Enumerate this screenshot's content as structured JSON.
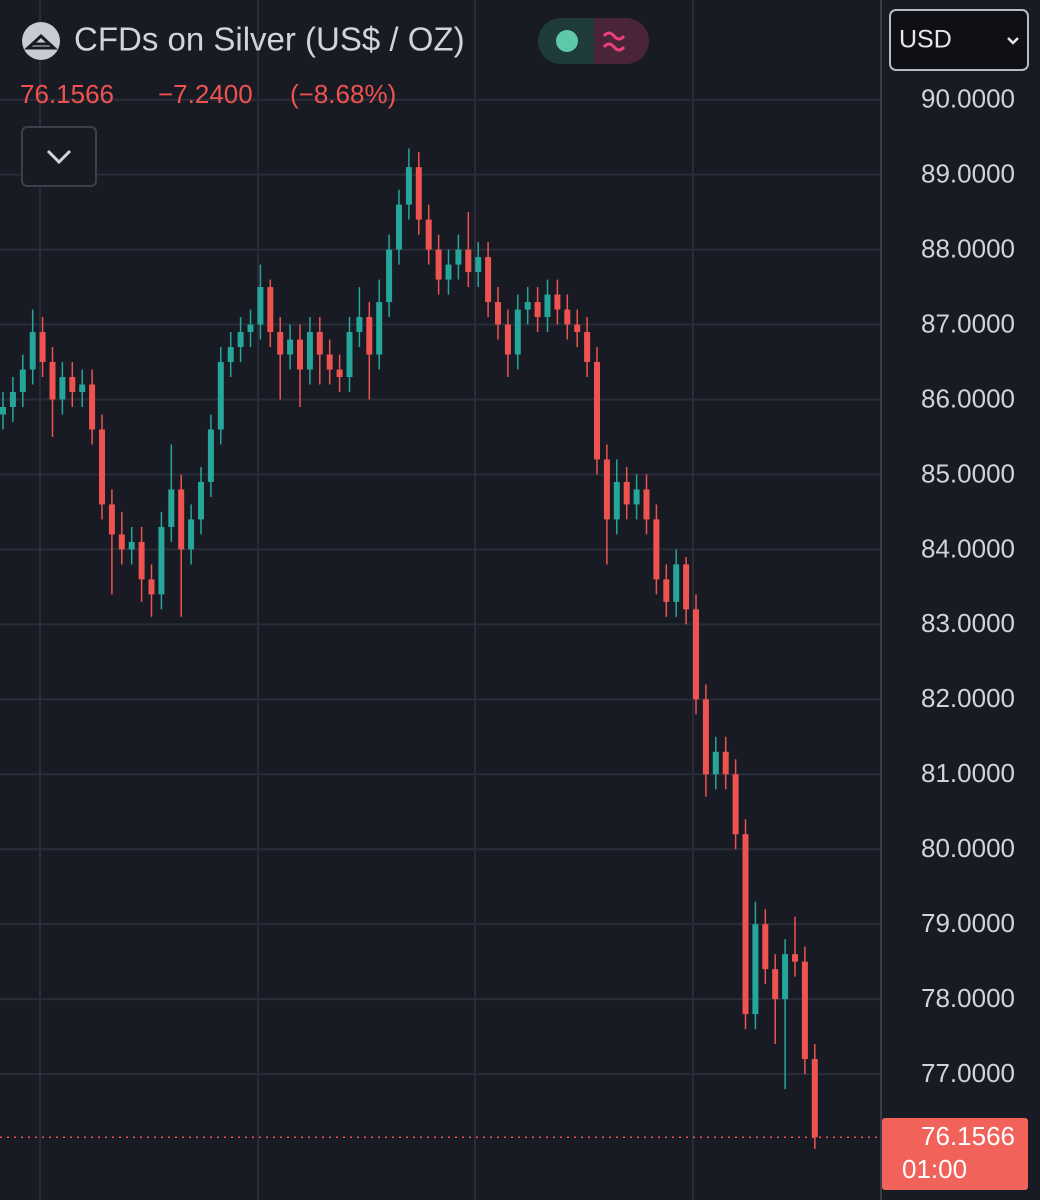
{
  "header": {
    "title": "CFDs on Silver (US$ / OZ)",
    "price": "76.1566",
    "change": "−7.2400",
    "change_pct": "(−8.68%)",
    "currency": "USD",
    "countdown": "01:00"
  },
  "chart_data": {
    "type": "candlestick",
    "up_color": "#26a69a",
    "down_color": "#ef5350",
    "grid": true,
    "ylim": [
      75.32,
      91.33
    ],
    "yticks": [
      {
        "value": 77,
        "label": "77.0000"
      },
      {
        "value": 78,
        "label": "78.0000"
      },
      {
        "value": 79,
        "label": "79.0000"
      },
      {
        "value": 80,
        "label": "80.0000"
      },
      {
        "value": 81,
        "label": "81.0000"
      },
      {
        "value": 82,
        "label": "82.0000"
      },
      {
        "value": 83,
        "label": "83.0000"
      },
      {
        "value": 84,
        "label": "84.0000"
      },
      {
        "value": 85,
        "label": "85.0000"
      },
      {
        "value": 86,
        "label": "86.0000"
      },
      {
        "value": 87,
        "label": "87.0000"
      },
      {
        "value": 88,
        "label": "88.0000"
      },
      {
        "value": 89,
        "label": "89.0000"
      },
      {
        "value": 90,
        "label": "90.0000"
      }
    ],
    "open": [
      85.8,
      85.9,
      86.1,
      86.4,
      86.9,
      86.5,
      86.0,
      86.3,
      86.1,
      86.2,
      85.6,
      84.6,
      84.2,
      84.0,
      84.1,
      83.6,
      83.4,
      84.3,
      84.8,
      84.0,
      84.4,
      84.9,
      85.6,
      86.5,
      86.7,
      86.9,
      87.0,
      87.5,
      86.9,
      86.6,
      86.8,
      86.4,
      86.9,
      86.6,
      86.4,
      86.3,
      86.9,
      87.1,
      86.6,
      87.3,
      88.0,
      88.6,
      89.1,
      88.4,
      88.0,
      87.6,
      87.8,
      88.0,
      87.7,
      87.9,
      87.3,
      87.0,
      86.6,
      87.2,
      87.3,
      87.1,
      87.4,
      87.2,
      87.0,
      86.9,
      86.5,
      85.2,
      84.4,
      84.9,
      84.6,
      84.8,
      84.4,
      83.6,
      83.3,
      83.8,
      83.2,
      82.0,
      81.0,
      81.3,
      81.0,
      80.2,
      77.8,
      79.0,
      78.4,
      78.0,
      78.6,
      78.5,
      77.2
    ],
    "high": [
      86.1,
      86.3,
      86.6,
      87.2,
      87.1,
      86.7,
      86.5,
      86.5,
      86.4,
      86.4,
      85.8,
      84.8,
      84.5,
      84.3,
      84.3,
      83.8,
      84.5,
      85.4,
      85.0,
      84.6,
      85.1,
      85.8,
      86.7,
      86.9,
      87.1,
      87.2,
      87.8,
      87.6,
      87.1,
      87.0,
      87.0,
      87.1,
      87.1,
      86.8,
      86.6,
      87.1,
      87.5,
      87.3,
      87.6,
      88.2,
      88.8,
      89.35,
      89.3,
      88.6,
      88.2,
      88.0,
      88.2,
      88.5,
      88.1,
      88.1,
      87.5,
      87.2,
      87.4,
      87.5,
      87.5,
      87.6,
      87.6,
      87.4,
      87.2,
      87.1,
      86.7,
      85.4,
      85.2,
      85.1,
      85.0,
      85.0,
      84.6,
      83.8,
      84.0,
      83.9,
      83.4,
      82.2,
      81.5,
      81.5,
      81.2,
      80.4,
      79.3,
      79.2,
      78.6,
      78.8,
      79.1,
      78.7,
      77.4
    ],
    "low": [
      85.6,
      85.7,
      85.9,
      86.2,
      86.3,
      85.5,
      85.8,
      85.9,
      85.9,
      85.4,
      84.4,
      83.4,
      83.8,
      83.8,
      83.3,
      83.1,
      83.2,
      84.1,
      83.1,
      83.8,
      84.2,
      84.7,
      85.4,
      86.3,
      86.5,
      86.7,
      86.8,
      86.7,
      86.0,
      86.4,
      85.9,
      86.2,
      86.2,
      86.2,
      86.1,
      86.1,
      86.7,
      86.0,
      86.4,
      87.1,
      87.8,
      88.4,
      88.2,
      87.8,
      87.4,
      87.4,
      87.6,
      87.5,
      87.5,
      87.1,
      86.8,
      86.3,
      86.4,
      87.0,
      86.9,
      86.9,
      87.0,
      86.8,
      86.7,
      86.3,
      85.0,
      83.8,
      84.2,
      84.4,
      84.4,
      84.2,
      83.4,
      83.1,
      83.1,
      83.0,
      81.8,
      80.7,
      80.8,
      80.8,
      80.0,
      77.6,
      77.6,
      78.2,
      77.4,
      76.8,
      78.3,
      77.0,
      76.0
    ],
    "close": [
      85.9,
      86.1,
      86.4,
      86.9,
      86.5,
      86.0,
      86.3,
      86.1,
      86.2,
      85.6,
      84.6,
      84.2,
      84.0,
      84.1,
      83.6,
      83.4,
      84.3,
      84.8,
      84.0,
      84.4,
      84.9,
      85.6,
      86.5,
      86.7,
      86.9,
      87.0,
      87.5,
      86.9,
      86.6,
      86.8,
      86.4,
      86.9,
      86.6,
      86.4,
      86.3,
      86.9,
      87.1,
      86.6,
      87.3,
      88.0,
      88.6,
      89.1,
      88.4,
      88.0,
      87.6,
      87.8,
      88.0,
      87.7,
      87.9,
      87.3,
      87.0,
      86.6,
      87.2,
      87.3,
      87.1,
      87.4,
      87.2,
      87.0,
      86.9,
      86.5,
      85.2,
      84.4,
      84.9,
      84.6,
      84.8,
      84.4,
      83.6,
      83.3,
      83.8,
      83.2,
      82.0,
      81.0,
      81.3,
      81.0,
      80.2,
      77.8,
      79.0,
      78.4,
      78.0,
      78.6,
      78.5,
      77.2,
      76.1566
    ]
  }
}
